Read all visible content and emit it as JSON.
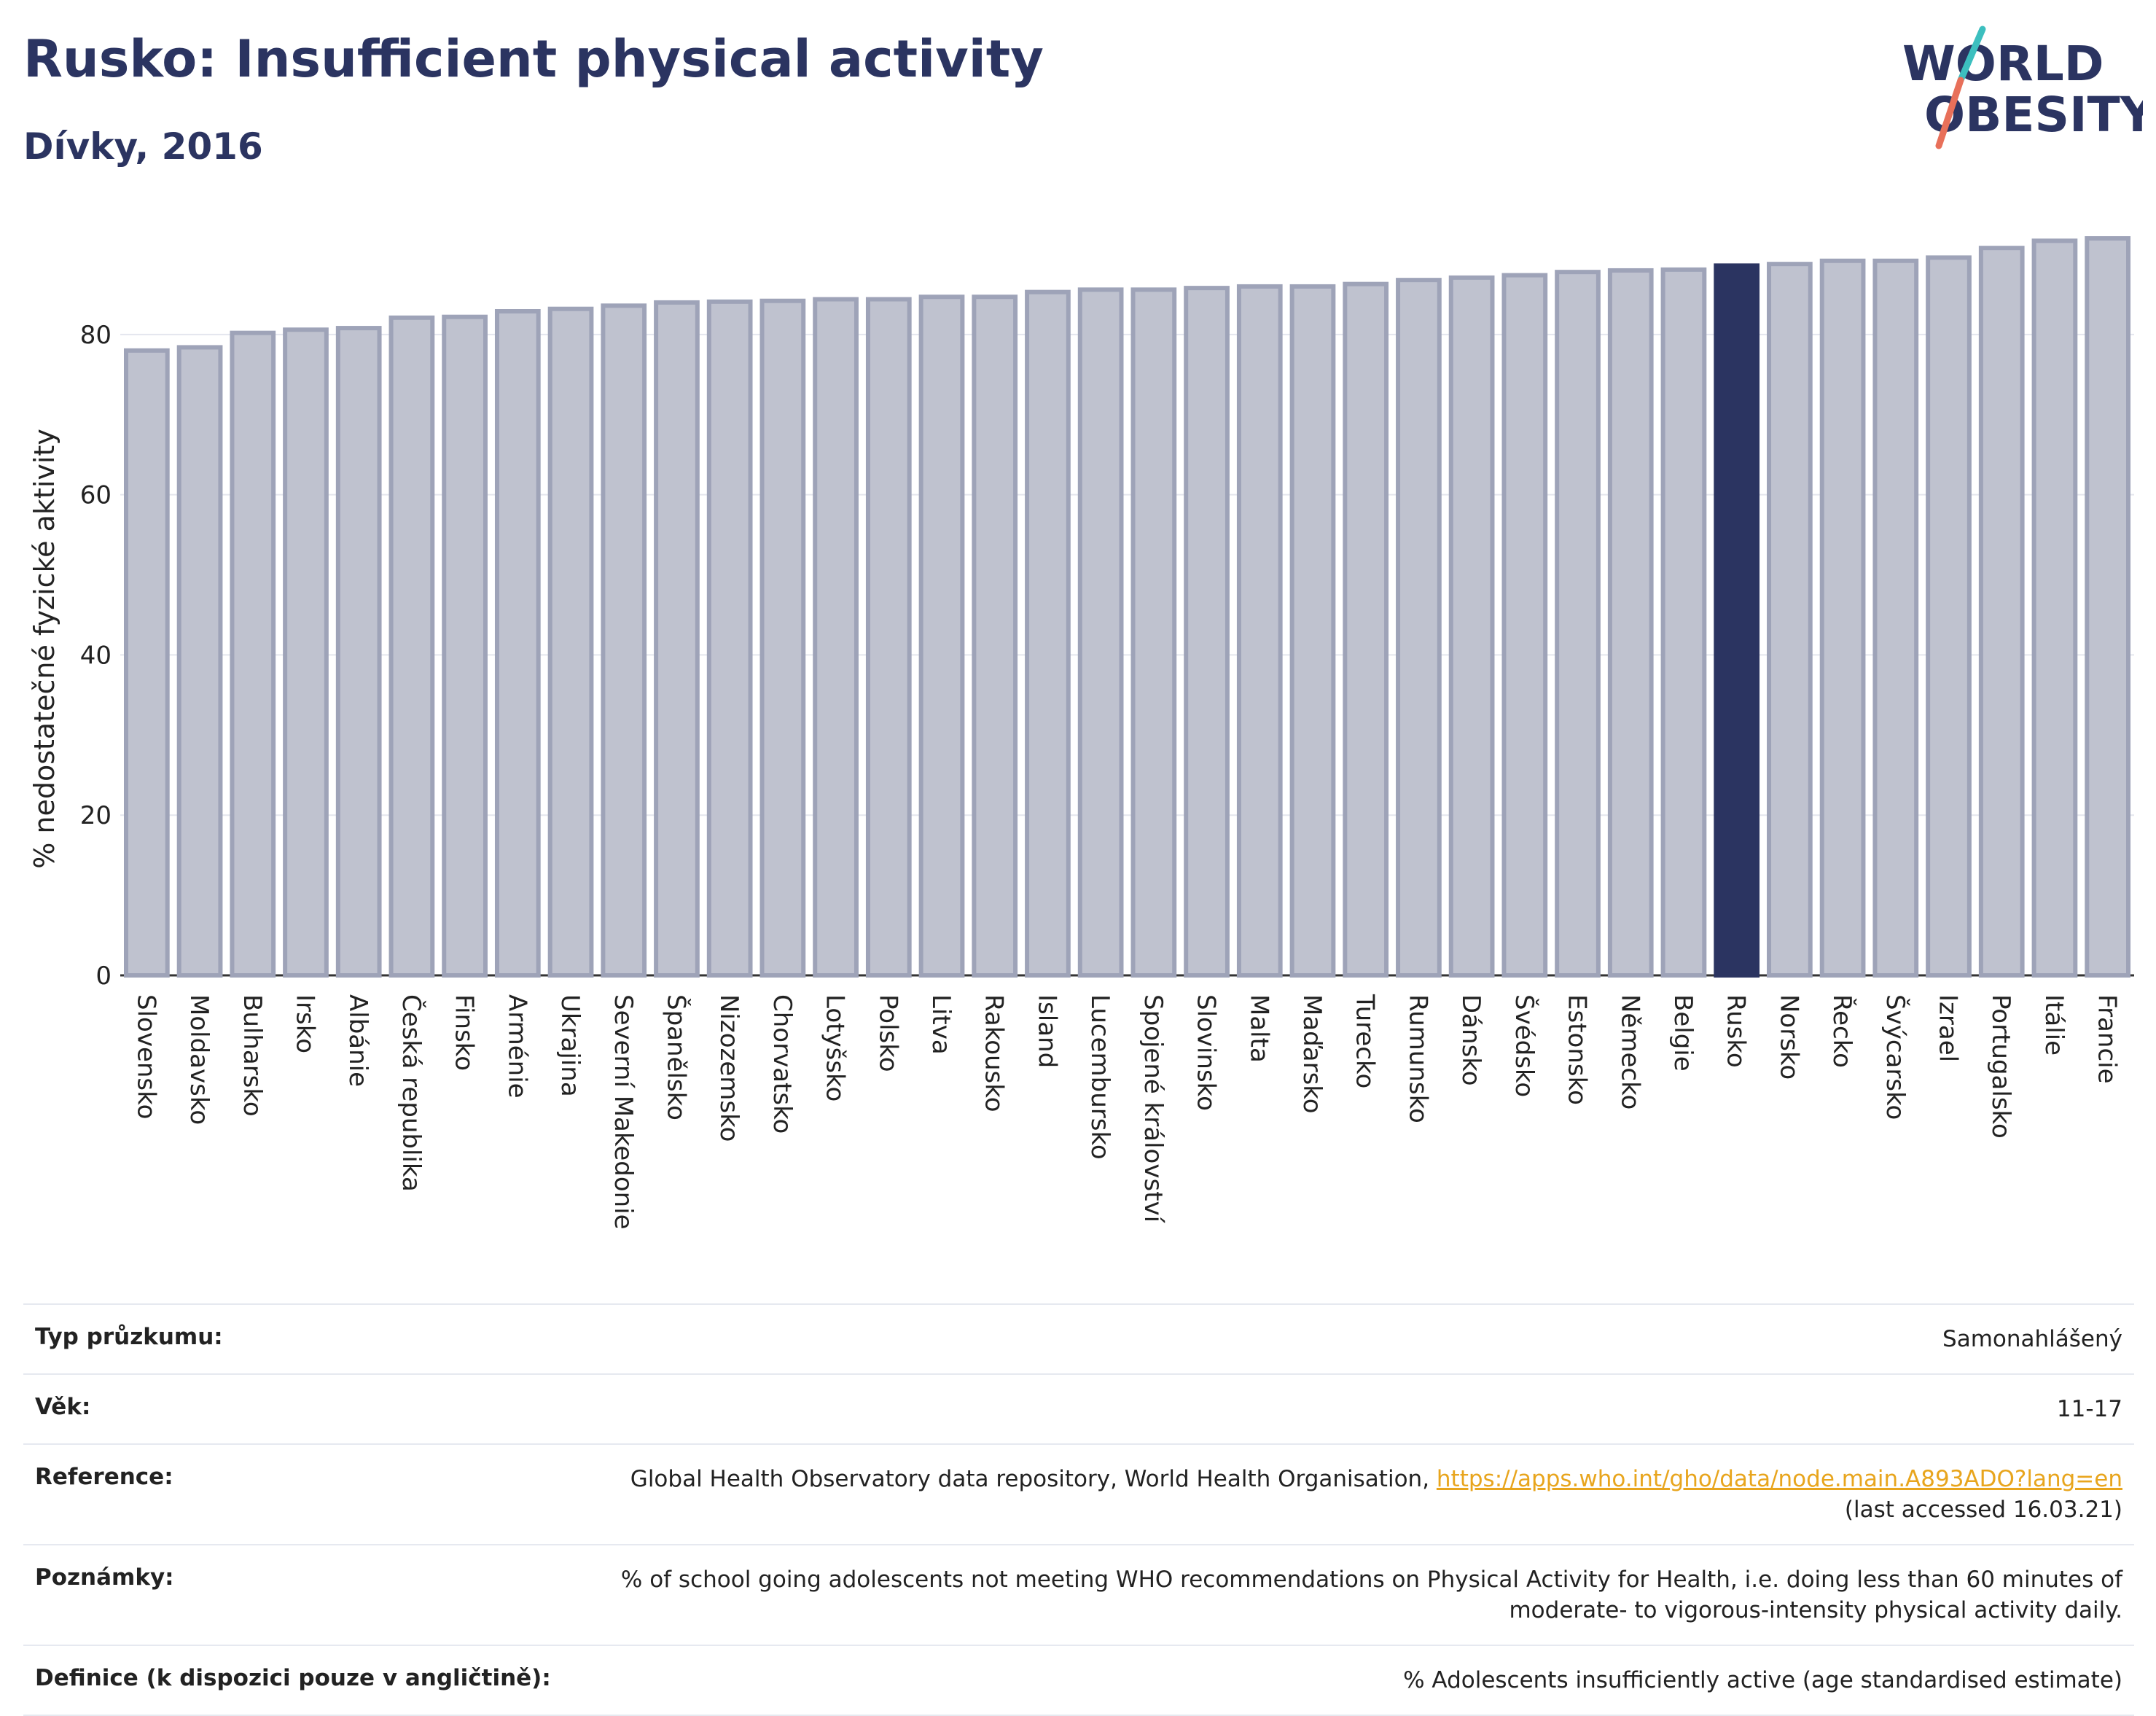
{
  "header": {
    "title": "Rusko: Insufficient physical activity",
    "subtitle": "Dívky, 2016"
  },
  "logo": {
    "line1": "WORLD",
    "line2": "OBESITY",
    "icon": "world-obesity-logo"
  },
  "colors": {
    "bar": "#bfc2cf",
    "bar_border": "#9ea3b8",
    "highlight": "#2b3461",
    "accent_teal": "#3cbfbf",
    "accent_coral": "#e8705a"
  },
  "chart_data": {
    "type": "bar",
    "title": "Rusko: Insufficient physical activity",
    "subtitle": "Dívky, 2016",
    "ylabel": "% nedostatečné fyzické aktivity",
    "xlabel": "",
    "ylim": [
      0,
      92
    ],
    "yticks": [
      0,
      20,
      40,
      60,
      80
    ],
    "grid": true,
    "highlight": "Rusko",
    "categories": [
      "Slovensko",
      "Moldavsko",
      "Bulharsko",
      "Irsko",
      "Albánie",
      "Česká republika",
      "Finsko",
      "Arménie",
      "Ukrajina",
      "Severní Makedonie",
      "Španělsko",
      "Nizozemsko",
      "Chorvatsko",
      "Lotyšsko",
      "Polsko",
      "Litva",
      "Rakousko",
      "Island",
      "Lucembursko",
      "Spojené království",
      "Slovinsko",
      "Malta",
      "Maďarsko",
      "Turecko",
      "Rumunsko",
      "Dánsko",
      "Švédsko",
      "Estonsko",
      "Německo",
      "Belgie",
      "Rusko",
      "Norsko",
      "Řecko",
      "Švýcarsko",
      "Izrael",
      "Portugalsko",
      "Itálie",
      "Francie"
    ],
    "values": [
      78.0,
      78.4,
      80.2,
      80.6,
      80.8,
      82.1,
      82.2,
      82.9,
      83.2,
      83.6,
      84.0,
      84.1,
      84.2,
      84.4,
      84.4,
      84.7,
      84.7,
      85.3,
      85.6,
      85.6,
      85.8,
      86.0,
      86.0,
      86.3,
      86.8,
      87.1,
      87.4,
      87.8,
      88.0,
      88.1,
      88.6,
      88.8,
      89.2,
      89.2,
      89.6,
      90.8,
      91.7,
      92.0
    ]
  },
  "info": {
    "survey_label": "Typ průzkumu:",
    "survey_value": "Samonahlášený",
    "age_label": "Věk:",
    "age_value": "11-17",
    "reference_label": "Reference:",
    "reference_text": "Global Health Observatory data repository, World Health Organisation,",
    "reference_link": "https://apps.who.int/gho/data/node.main.A893ADO?lang=en",
    "reference_accessed": "(last accessed 16.03.21)",
    "notes_label": "Poznámky:",
    "notes_line1": "% of school going adolescents not meeting WHO recommendations on Physical Activity for Health, i.e. doing less than 60 minutes of",
    "notes_line2": "moderate- to vigorous-intensity physical activity daily.",
    "definition_label": "Definice (k dispozici pouze v angličtině):",
    "definition_value": "% Adolescents insufficiently active (age standardised estimate)"
  }
}
